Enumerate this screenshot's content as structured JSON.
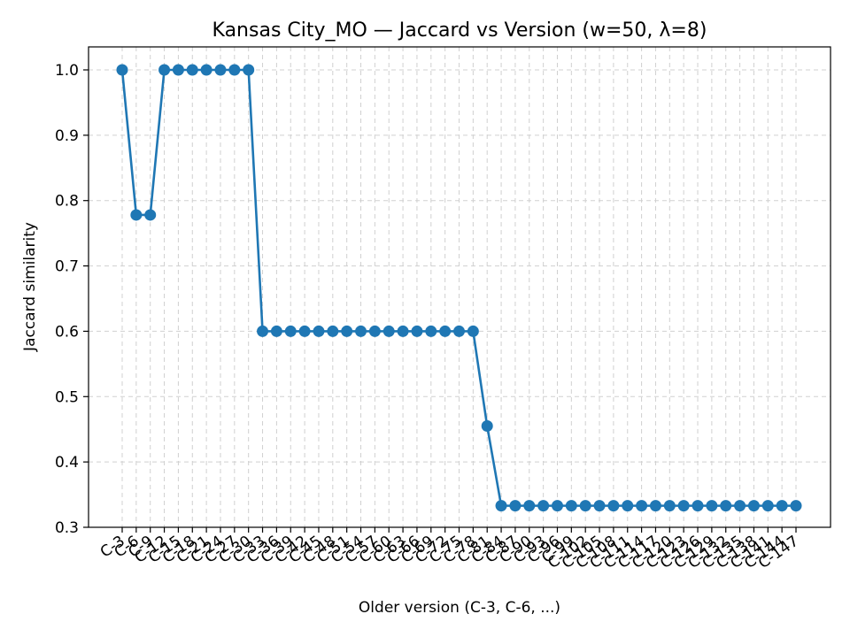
{
  "chart_data": {
    "type": "line",
    "title": "Kansas City_MO — Jaccard vs Version (w=50, λ=8)",
    "xlabel": "Older version (C-3, C-6, ...)",
    "ylabel": "Jaccard similarity",
    "ylim": [
      0.3,
      1.03
    ],
    "yticks": [
      "0.3",
      "0.4",
      "0.5",
      "0.6",
      "0.7",
      "0.8",
      "0.9",
      "1.0"
    ],
    "grid": true,
    "categories": [
      "C-3",
      "C-6",
      "C-9",
      "C-12",
      "C-15",
      "C-18",
      "C-21",
      "C-24",
      "C-27",
      "C-30",
      "C-33",
      "C-36",
      "C-39",
      "C-42",
      "C-45",
      "C-48",
      "C-51",
      "C-54",
      "C-57",
      "C-60",
      "C-63",
      "C-66",
      "C-69",
      "C-72",
      "C-75",
      "C-78",
      "C-81",
      "C-84",
      "C-87",
      "C-90",
      "C-93",
      "C-96",
      "C-99",
      "C-102",
      "C-105",
      "C-108",
      "C-111",
      "C-114",
      "C-117",
      "C-120",
      "C-123",
      "C-126",
      "C-129",
      "C-132",
      "C-135",
      "C-138",
      "C-141",
      "C-144",
      "C-147"
    ],
    "series": [
      {
        "color": "#1f77b4",
        "values": [
          1.0,
          0.778,
          0.778,
          1.0,
          1.0,
          1.0,
          1.0,
          1.0,
          1.0,
          1.0,
          0.6,
          0.6,
          0.6,
          0.6,
          0.6,
          0.6,
          0.6,
          0.6,
          0.6,
          0.6,
          0.6,
          0.6,
          0.6,
          0.6,
          0.6,
          0.6,
          0.455,
          0.333,
          0.333,
          0.333,
          0.333,
          0.333,
          0.333,
          0.333,
          0.333,
          0.333,
          0.333,
          0.333,
          0.333,
          0.333,
          0.333,
          0.333,
          0.333,
          0.333,
          0.333,
          0.333,
          0.333,
          0.333,
          0.333
        ]
      }
    ]
  }
}
